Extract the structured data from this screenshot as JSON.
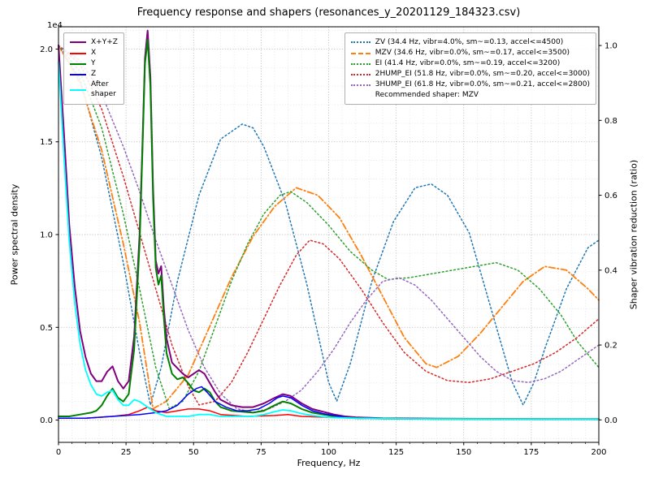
{
  "title": "Frequency response and shapers (resonances_y_20201129_184323.csv)",
  "axes": {
    "x": {
      "label": "Frequency, Hz",
      "min": 0,
      "max": 200,
      "ticks": [
        0,
        25,
        50,
        75,
        100,
        125,
        150,
        175,
        200
      ],
      "tick_labels": [
        "0",
        "25",
        "50",
        "75",
        "100",
        "125",
        "150",
        "175",
        "200"
      ],
      "minor_step": 5
    },
    "y_left": {
      "label": "Power spectral density",
      "offset_text": "1e4",
      "min": -0.12,
      "max": 2.12,
      "ticks": [
        0.0,
        0.5,
        1.0,
        1.5,
        2.0
      ],
      "tick_labels": [
        "0.0",
        "0.5",
        "1.0",
        "1.5",
        "2.0"
      ],
      "minor_step": 0.1
    },
    "y_right": {
      "label": "Shaper vibration reduction (ratio)",
      "min": -0.06,
      "max": 1.05,
      "ticks": [
        0.0,
        0.2,
        0.4,
        0.6,
        0.8,
        1.0
      ],
      "tick_labels": [
        "0.0",
        "0.2",
        "0.4",
        "0.6",
        "0.8",
        "1.0"
      ]
    }
  },
  "style": {
    "grid_major": "#b5b5b5",
    "grid_minor": "#e2e2e2",
    "spine": "#000000"
  },
  "legends": {
    "left": {
      "entries": [
        {
          "id": "xyz",
          "label": "X+Y+Z",
          "color": "#800080",
          "style": "solid"
        },
        {
          "id": "x",
          "label": "X",
          "color": "#ff0000",
          "style": "solid"
        },
        {
          "id": "y",
          "label": "Y",
          "color": "#008000",
          "style": "solid"
        },
        {
          "id": "z",
          "label": "Z",
          "color": "#0000ff",
          "style": "solid"
        },
        {
          "id": "after-shaper",
          "label": "After\nshaper",
          "color": "#00ffff",
          "style": "solid"
        }
      ]
    },
    "right": {
      "entries": [
        {
          "id": "zv",
          "label": "ZV (34.4 Hz, vibr=4.0%, sm~=0.13, accel<=4500)",
          "color": "#1f77b4",
          "style": "dotted"
        },
        {
          "id": "mzv",
          "label": "MZV (34.6 Hz, vibr=0.0%, sm~=0.17, accel<=3500)",
          "color": "#ff7f0e",
          "style": "dashed"
        },
        {
          "id": "ei",
          "label": "EI (41.4 Hz, vibr=0.0%, sm~=0.19, accel<=3200)",
          "color": "#2ca02c",
          "style": "dotted"
        },
        {
          "id": "2hump-ei",
          "label": "2HUMP_EI (51.8 Hz, vibr=0.0%, sm~=0.20, accel<=3000)",
          "color": "#d62728",
          "style": "dotted"
        },
        {
          "id": "3hump-ei",
          "label": "3HUMP_EI (61.8 Hz, vibr=0.0%, sm~=0.21, accel<=2800)",
          "color": "#9467bd",
          "style": "dotted"
        }
      ],
      "note": "Recommended shaper: MZV"
    }
  },
  "chart_data": {
    "type": "line",
    "title": "Frequency response and shapers (resonances_y_20201129_184323.csv)",
    "xlabel": "Frequency, Hz",
    "ylabel_left": "Power spectral density (x 1e4)",
    "ylabel_right": "Shaper vibration reduction (ratio)",
    "xlim": [
      0,
      200
    ],
    "ylim_left_1e4": [
      -0.12,
      2.12
    ],
    "ylim_right": [
      -0.06,
      1.05
    ],
    "grid": true,
    "series": [
      {
        "id": "zv",
        "name": "ZV",
        "axis": "right",
        "color": "#1f77b4",
        "width": 1.5,
        "dash": "dot",
        "x": [
          0,
          8,
          16,
          24,
          30,
          34,
          38,
          44,
          52,
          60,
          68,
          72,
          76,
          84,
          92,
          100,
          103,
          108,
          116,
          124,
          132,
          138,
          144,
          152,
          160,
          164,
          168,
          172,
          176,
          180,
          188,
          196,
          200
        ],
        "y": [
          1.0,
          0.91,
          0.7,
          0.42,
          0.18,
          0.04,
          0.14,
          0.37,
          0.6,
          0.75,
          0.79,
          0.78,
          0.73,
          0.58,
          0.36,
          0.1,
          0.05,
          0.15,
          0.37,
          0.53,
          0.62,
          0.63,
          0.6,
          0.5,
          0.3,
          0.2,
          0.1,
          0.04,
          0.1,
          0.19,
          0.35,
          0.46,
          0.48
        ]
      },
      {
        "id": "mzv",
        "name": "MZV",
        "axis": "right",
        "color": "#ff7f0e",
        "width": 1.8,
        "dash": "dashdot",
        "x": [
          0,
          8,
          16,
          24,
          30,
          35,
          40,
          48,
          56,
          64,
          72,
          80,
          88,
          96,
          104,
          112,
          120,
          128,
          136,
          140,
          148,
          156,
          164,
          172,
          180,
          188,
          196,
          200
        ],
        "y": [
          1.0,
          0.9,
          0.72,
          0.47,
          0.26,
          0.03,
          0.05,
          0.12,
          0.25,
          0.38,
          0.49,
          0.57,
          0.62,
          0.6,
          0.54,
          0.44,
          0.33,
          0.22,
          0.15,
          0.14,
          0.17,
          0.23,
          0.3,
          0.37,
          0.41,
          0.4,
          0.35,
          0.32
        ]
      },
      {
        "id": "ei",
        "name": "EI",
        "axis": "right",
        "color": "#2ca02c",
        "width": 1.5,
        "dash": "dot",
        "x": [
          0,
          8,
          16,
          24,
          30,
          36,
          41,
          46,
          52,
          58,
          64,
          70,
          76,
          82,
          86,
          92,
          100,
          108,
          116,
          122,
          130,
          138,
          146,
          154,
          162,
          170,
          178,
          186,
          192,
          200
        ],
        "y": [
          1.0,
          0.93,
          0.78,
          0.55,
          0.35,
          0.14,
          0.03,
          0.05,
          0.13,
          0.25,
          0.37,
          0.47,
          0.55,
          0.6,
          0.61,
          0.58,
          0.52,
          0.45,
          0.4,
          0.375,
          0.38,
          0.39,
          0.4,
          0.41,
          0.42,
          0.4,
          0.35,
          0.28,
          0.21,
          0.14
        ]
      },
      {
        "id": "2hump-ei",
        "name": "2HUMP_EI",
        "axis": "right",
        "color": "#d62728",
        "width": 1.5,
        "dash": "dot",
        "x": [
          0,
          8,
          16,
          24,
          30,
          36,
          42,
          48,
          52,
          58,
          64,
          70,
          76,
          82,
          88,
          93,
          98,
          104,
          112,
          120,
          128,
          136,
          144,
          152,
          160,
          168,
          176,
          184,
          192,
          200
        ],
        "y": [
          1.0,
          0.95,
          0.83,
          0.65,
          0.5,
          0.35,
          0.2,
          0.09,
          0.04,
          0.05,
          0.1,
          0.18,
          0.27,
          0.36,
          0.44,
          0.48,
          0.47,
          0.43,
          0.35,
          0.26,
          0.18,
          0.13,
          0.105,
          0.1,
          0.11,
          0.13,
          0.15,
          0.18,
          0.22,
          0.27
        ]
      },
      {
        "id": "3hump-ei",
        "name": "3HUMP_EI",
        "axis": "right",
        "color": "#9467bd",
        "width": 1.5,
        "dash": "dot",
        "x": [
          0,
          8,
          16,
          24,
          30,
          36,
          42,
          48,
          54,
          60,
          66,
          72,
          78,
          84,
          90,
          96,
          102,
          108,
          114,
          120,
          126,
          132,
          138,
          144,
          150,
          156,
          162,
          168,
          174,
          180,
          186,
          192,
          200
        ],
        "y": [
          1.0,
          0.96,
          0.87,
          0.73,
          0.61,
          0.48,
          0.36,
          0.24,
          0.14,
          0.07,
          0.03,
          0.02,
          0.03,
          0.05,
          0.08,
          0.13,
          0.19,
          0.26,
          0.32,
          0.37,
          0.38,
          0.36,
          0.32,
          0.27,
          0.22,
          0.17,
          0.13,
          0.105,
          0.1,
          0.11,
          0.13,
          0.16,
          0.2
        ]
      },
      {
        "id": "xyz",
        "name": "X+Y+Z",
        "axis": "left",
        "color": "#800080",
        "width": 2,
        "dash": "",
        "x": [
          0,
          2,
          4,
          6,
          8,
          10,
          12,
          14,
          16,
          18,
          20,
          22,
          24,
          26,
          28,
          30,
          31,
          32,
          33,
          34,
          35,
          36,
          37,
          38,
          39,
          40,
          42,
          44,
          46,
          48,
          50,
          52,
          54,
          56,
          58,
          60,
          64,
          68,
          72,
          76,
          80,
          83,
          86,
          90,
          94,
          98,
          102,
          106,
          110,
          120,
          140,
          160,
          180,
          200
        ],
        "y": [
          2.02,
          1.55,
          1.05,
          0.72,
          0.48,
          0.34,
          0.25,
          0.21,
          0.21,
          0.26,
          0.29,
          0.21,
          0.17,
          0.21,
          0.45,
          1.0,
          1.45,
          1.95,
          2.1,
          1.85,
          1.25,
          0.86,
          0.79,
          0.83,
          0.6,
          0.44,
          0.31,
          0.28,
          0.25,
          0.23,
          0.25,
          0.27,
          0.25,
          0.2,
          0.15,
          0.11,
          0.08,
          0.07,
          0.07,
          0.09,
          0.12,
          0.14,
          0.13,
          0.09,
          0.06,
          0.045,
          0.03,
          0.02,
          0.015,
          0.01,
          0.008,
          0.007,
          0.006,
          0.006
        ]
      },
      {
        "id": "x",
        "name": "X",
        "axis": "left",
        "color": "#ff0000",
        "width": 1.5,
        "dash": "",
        "x": [
          0,
          10,
          20,
          26,
          30,
          33,
          36,
          40,
          44,
          48,
          52,
          56,
          60,
          70,
          80,
          85,
          90,
          100,
          110,
          140,
          200
        ],
        "y": [
          0.01,
          0.01,
          0.02,
          0.03,
          0.05,
          0.07,
          0.05,
          0.04,
          0.05,
          0.06,
          0.06,
          0.05,
          0.03,
          0.02,
          0.025,
          0.03,
          0.02,
          0.015,
          0.01,
          0.008,
          0.005
        ]
      },
      {
        "id": "y",
        "name": "Y",
        "axis": "left",
        "color": "#008000",
        "width": 2,
        "dash": "",
        "x": [
          0,
          4,
          8,
          12,
          14,
          16,
          18,
          20,
          22,
          24,
          26,
          28,
          30,
          31,
          32,
          33,
          34,
          35,
          36,
          37,
          38,
          39,
          40,
          42,
          44,
          46,
          48,
          50,
          52,
          54,
          56,
          58,
          60,
          64,
          68,
          72,
          76,
          80,
          83,
          86,
          90,
          94,
          98,
          102,
          106,
          110,
          120,
          140,
          160,
          180,
          200
        ],
        "y": [
          0.02,
          0.02,
          0.03,
          0.04,
          0.05,
          0.08,
          0.13,
          0.17,
          0.12,
          0.1,
          0.14,
          0.38,
          0.95,
          1.42,
          1.92,
          2.05,
          1.8,
          1.2,
          0.82,
          0.73,
          0.78,
          0.55,
          0.36,
          0.25,
          0.22,
          0.23,
          0.2,
          0.16,
          0.15,
          0.17,
          0.15,
          0.1,
          0.07,
          0.05,
          0.045,
          0.04,
          0.05,
          0.08,
          0.1,
          0.09,
          0.06,
          0.04,
          0.03,
          0.02,
          0.015,
          0.01,
          0.008,
          0.006,
          0.005,
          0.005,
          0.005
        ]
      },
      {
        "id": "z",
        "name": "Z",
        "axis": "left",
        "color": "#0000ff",
        "width": 1.5,
        "dash": "",
        "x": [
          0,
          10,
          20,
          30,
          36,
          40,
          44,
          48,
          51,
          53,
          55,
          58,
          62,
          66,
          70,
          74,
          78,
          81,
          83,
          86,
          90,
          94,
          98,
          102,
          106,
          110,
          120,
          140,
          200
        ],
        "y": [
          0.01,
          0.01,
          0.02,
          0.03,
          0.04,
          0.05,
          0.08,
          0.14,
          0.17,
          0.18,
          0.15,
          0.1,
          0.07,
          0.05,
          0.05,
          0.06,
          0.09,
          0.12,
          0.13,
          0.12,
          0.08,
          0.05,
          0.035,
          0.025,
          0.015,
          0.01,
          0.008,
          0.006,
          0.005
        ]
      },
      {
        "id": "after-shaper",
        "name": "After shaper",
        "axis": "left",
        "color": "#00ffff",
        "width": 1.8,
        "dash": "",
        "x": [
          0,
          2,
          4,
          6,
          8,
          10,
          12,
          14,
          16,
          18,
          20,
          22,
          24,
          26,
          28,
          30,
          32,
          34,
          36,
          40,
          44,
          48,
          52,
          56,
          60,
          66,
          72,
          76,
          80,
          83,
          86,
          90,
          94,
          100,
          110,
          120,
          140,
          200
        ],
        "y": [
          1.93,
          1.42,
          0.96,
          0.63,
          0.41,
          0.27,
          0.19,
          0.14,
          0.13,
          0.15,
          0.16,
          0.11,
          0.08,
          0.08,
          0.11,
          0.1,
          0.08,
          0.06,
          0.04,
          0.02,
          0.02,
          0.02,
          0.03,
          0.03,
          0.02,
          0.02,
          0.02,
          0.03,
          0.045,
          0.055,
          0.05,
          0.035,
          0.025,
          0.015,
          0.01,
          0.008,
          0.006,
          0.005
        ]
      }
    ]
  }
}
